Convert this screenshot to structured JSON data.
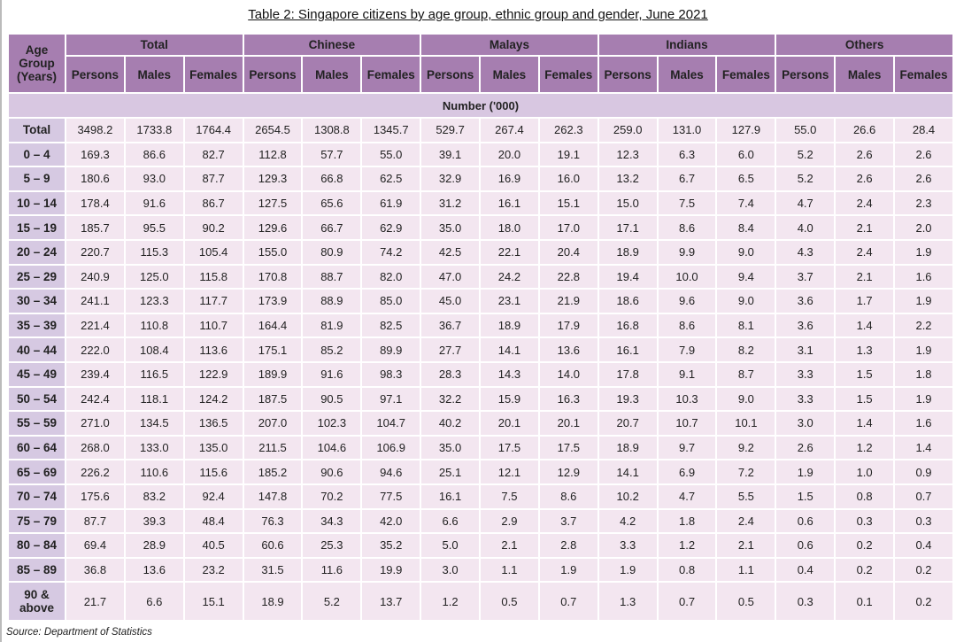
{
  "title": "Table 2: Singapore citizens by age group, ethnic group and gender, June 2021",
  "header": {
    "age_group": "Age Group (Years)",
    "groups": [
      "Total",
      "Chinese",
      "Malays",
      "Indians",
      "Others"
    ],
    "subcols": [
      "Persons",
      "Males",
      "Females"
    ]
  },
  "unit_label": "Number ('000)",
  "colors": {
    "header": "#a67eb0",
    "unit_row": "#d8c7e1",
    "age_column": "#d6c9e2",
    "cell": "#f3e6f0"
  },
  "rows": [
    {
      "age": "Total",
      "values": [
        "3498.2",
        "1733.8",
        "1764.4",
        "2654.5",
        "1308.8",
        "1345.7",
        "529.7",
        "267.4",
        "262.3",
        "259.0",
        "131.0",
        "127.9",
        "55.0",
        "26.6",
        "28.4"
      ]
    },
    {
      "age": "0 – 4",
      "values": [
        "169.3",
        "86.6",
        "82.7",
        "112.8",
        "57.7",
        "55.0",
        "39.1",
        "20.0",
        "19.1",
        "12.3",
        "6.3",
        "6.0",
        "5.2",
        "2.6",
        "2.6"
      ]
    },
    {
      "age": "5 – 9",
      "values": [
        "180.6",
        "93.0",
        "87.7",
        "129.3",
        "66.8",
        "62.5",
        "32.9",
        "16.9",
        "16.0",
        "13.2",
        "6.7",
        "6.5",
        "5.2",
        "2.6",
        "2.6"
      ]
    },
    {
      "age": "10 – 14",
      "values": [
        "178.4",
        "91.6",
        "86.7",
        "127.5",
        "65.6",
        "61.9",
        "31.2",
        "16.1",
        "15.1",
        "15.0",
        "7.5",
        "7.4",
        "4.7",
        "2.4",
        "2.3"
      ]
    },
    {
      "age": "15 – 19",
      "values": [
        "185.7",
        "95.5",
        "90.2",
        "129.6",
        "66.7",
        "62.9",
        "35.0",
        "18.0",
        "17.0",
        "17.1",
        "8.6",
        "8.4",
        "4.0",
        "2.1",
        "2.0"
      ]
    },
    {
      "age": "20 – 24",
      "values": [
        "220.7",
        "115.3",
        "105.4",
        "155.0",
        "80.9",
        "74.2",
        "42.5",
        "22.1",
        "20.4",
        "18.9",
        "9.9",
        "9.0",
        "4.3",
        "2.4",
        "1.9"
      ]
    },
    {
      "age": "25 – 29",
      "values": [
        "240.9",
        "125.0",
        "115.8",
        "170.8",
        "88.7",
        "82.0",
        "47.0",
        "24.2",
        "22.8",
        "19.4",
        "10.0",
        "9.4",
        "3.7",
        "2.1",
        "1.6"
      ]
    },
    {
      "age": "30 – 34",
      "values": [
        "241.1",
        "123.3",
        "117.7",
        "173.9",
        "88.9",
        "85.0",
        "45.0",
        "23.1",
        "21.9",
        "18.6",
        "9.6",
        "9.0",
        "3.6",
        "1.7",
        "1.9"
      ]
    },
    {
      "age": "35 – 39",
      "values": [
        "221.4",
        "110.8",
        "110.7",
        "164.4",
        "81.9",
        "82.5",
        "36.7",
        "18.9",
        "17.9",
        "16.8",
        "8.6",
        "8.1",
        "3.6",
        "1.4",
        "2.2"
      ]
    },
    {
      "age": "40 – 44",
      "values": [
        "222.0",
        "108.4",
        "113.6",
        "175.1",
        "85.2",
        "89.9",
        "27.7",
        "14.1",
        "13.6",
        "16.1",
        "7.9",
        "8.2",
        "3.1",
        "1.3",
        "1.9"
      ]
    },
    {
      "age": "45 – 49",
      "values": [
        "239.4",
        "116.5",
        "122.9",
        "189.9",
        "91.6",
        "98.3",
        "28.3",
        "14.3",
        "14.0",
        "17.8",
        "9.1",
        "8.7",
        "3.3",
        "1.5",
        "1.8"
      ]
    },
    {
      "age": "50 – 54",
      "values": [
        "242.4",
        "118.1",
        "124.2",
        "187.5",
        "90.5",
        "97.1",
        "32.2",
        "15.9",
        "16.3",
        "19.3",
        "10.3",
        "9.0",
        "3.3",
        "1.5",
        "1.9"
      ]
    },
    {
      "age": "55 – 59",
      "values": [
        "271.0",
        "134.5",
        "136.5",
        "207.0",
        "102.3",
        "104.7",
        "40.2",
        "20.1",
        "20.1",
        "20.7",
        "10.7",
        "10.1",
        "3.0",
        "1.4",
        "1.6"
      ]
    },
    {
      "age": "60 – 64",
      "values": [
        "268.0",
        "133.0",
        "135.0",
        "211.5",
        "104.6",
        "106.9",
        "35.0",
        "17.5",
        "17.5",
        "18.9",
        "9.7",
        "9.2",
        "2.6",
        "1.2",
        "1.4"
      ]
    },
    {
      "age": "65 – 69",
      "values": [
        "226.2",
        "110.6",
        "115.6",
        "185.2",
        "90.6",
        "94.6",
        "25.1",
        "12.1",
        "12.9",
        "14.1",
        "6.9",
        "7.2",
        "1.9",
        "1.0",
        "0.9"
      ]
    },
    {
      "age": "70 – 74",
      "values": [
        "175.6",
        "83.2",
        "92.4",
        "147.8",
        "70.2",
        "77.5",
        "16.1",
        "7.5",
        "8.6",
        "10.2",
        "4.7",
        "5.5",
        "1.5",
        "0.8",
        "0.7"
      ]
    },
    {
      "age": "75 – 79",
      "values": [
        "87.7",
        "39.3",
        "48.4",
        "76.3",
        "34.3",
        "42.0",
        "6.6",
        "2.9",
        "3.7",
        "4.2",
        "1.8",
        "2.4",
        "0.6",
        "0.3",
        "0.3"
      ]
    },
    {
      "age": "80 – 84",
      "values": [
        "69.4",
        "28.9",
        "40.5",
        "60.6",
        "25.3",
        "35.2",
        "5.0",
        "2.1",
        "2.8",
        "3.3",
        "1.2",
        "2.1",
        "0.6",
        "0.2",
        "0.4"
      ]
    },
    {
      "age": "85 – 89",
      "values": [
        "36.8",
        "13.6",
        "23.2",
        "31.5",
        "11.6",
        "19.9",
        "3.0",
        "1.1",
        "1.9",
        "1.9",
        "0.8",
        "1.1",
        "0.4",
        "0.2",
        "0.2"
      ]
    },
    {
      "age": "90 & above",
      "values": [
        "21.7",
        "6.6",
        "15.1",
        "18.9",
        "5.2",
        "13.7",
        "1.2",
        "0.5",
        "0.7",
        "1.3",
        "0.7",
        "0.5",
        "0.3",
        "0.1",
        "0.2"
      ]
    }
  ],
  "source": "Source: Department of Statistics"
}
